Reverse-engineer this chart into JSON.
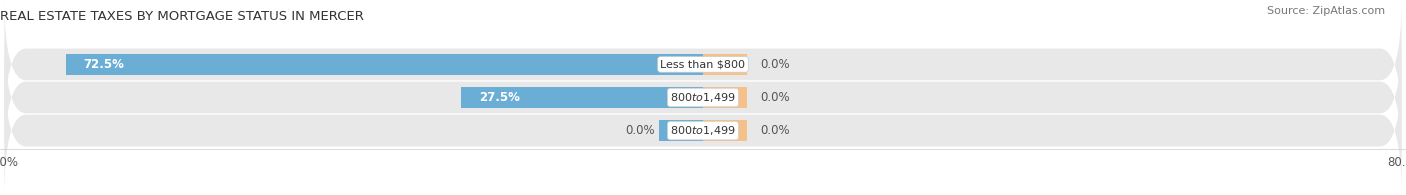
{
  "title": "REAL ESTATE TAXES BY MORTGAGE STATUS IN MERCER",
  "source": "Source: ZipAtlas.com",
  "rows": [
    {
      "label": "Less than $800",
      "without_mortgage": 72.5,
      "with_mortgage": 0.0
    },
    {
      "label": "$800 to $1,499",
      "without_mortgage": 27.5,
      "with_mortgage": 0.0
    },
    {
      "label": "$800 to $1,499",
      "without_mortgage": 0.0,
      "with_mortgage": 0.0
    }
  ],
  "color_without": "#6aaed6",
  "color_with": "#f5c08a",
  "xlim_left": -80.0,
  "xlim_right": 80.0,
  "bg_row": "#e8e8e8",
  "bg_fig": "#ffffff",
  "bar_height": 0.62,
  "title_fontsize": 9.5,
  "source_fontsize": 8,
  "value_fontsize": 8.5,
  "label_fontsize": 8,
  "tick_fontsize": 8.5,
  "legend_fontsize": 8.5,
  "with_mortgage_stub": 5.0
}
